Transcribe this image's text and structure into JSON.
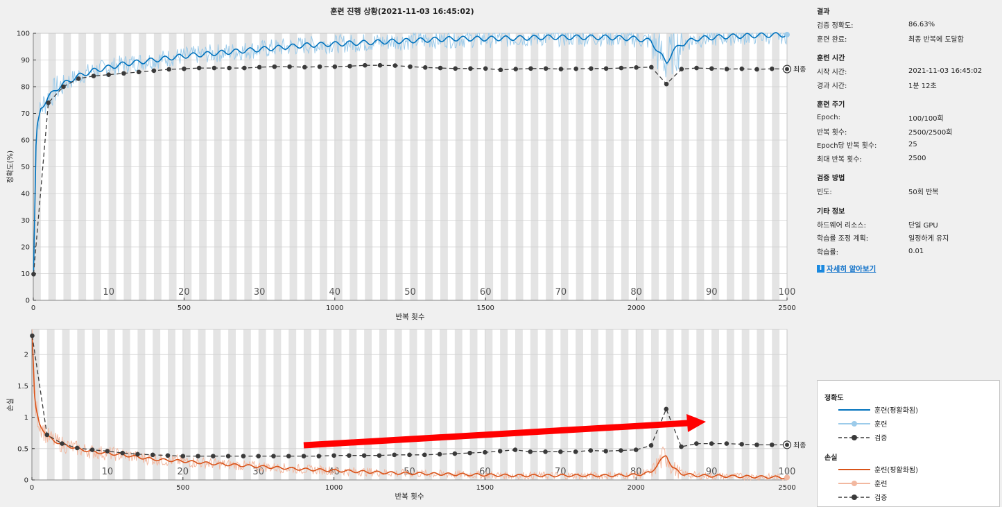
{
  "title": "훈련 진행 상황(2021-11-03 16:45:02)",
  "colors": {
    "train_acc": "#0072bd",
    "train_acc_raw": "#9ccbea",
    "train_loss": "#d95319",
    "train_loss_raw": "#f2b8a0",
    "validation": "#3a3a3a",
    "arrow": "#ff0000"
  },
  "chart_data": [
    {
      "type": "line",
      "ylabel": "정확도(%)",
      "xlabel": "반복 횟수",
      "xlim": [
        0,
        2500
      ],
      "ylim": [
        0,
        100
      ],
      "xticks": [
        0,
        500,
        1000,
        1500,
        2000,
        2500
      ],
      "yticks": [
        0,
        10,
        20,
        30,
        40,
        50,
        60,
        70,
        80,
        90,
        100
      ],
      "epoch_labels": [
        "10",
        "20",
        "30",
        "40",
        "50",
        "60",
        "70",
        "80",
        "90",
        "100"
      ],
      "final_label": "최종",
      "series": [
        {
          "name": "훈련(평활화됨)",
          "x": [
            1,
            10,
            25,
            50,
            75,
            100,
            150,
            200,
            300,
            400,
            500,
            600,
            700,
            800,
            900,
            1000,
            1100,
            1200,
            1300,
            1400,
            1500,
            1600,
            1700,
            1800,
            1900,
            2000,
            2050,
            2080,
            2100,
            2120,
            2150,
            2200,
            2300,
            2400,
            2500
          ],
          "y": [
            10,
            63,
            72,
            76,
            79,
            81,
            84,
            86,
            88.5,
            90,
            91.5,
            92.5,
            93.5,
            94.5,
            95.5,
            96,
            96.5,
            97,
            97.5,
            98,
            98,
            98.2,
            98.5,
            98.5,
            98.5,
            98,
            97,
            92,
            89,
            93,
            96,
            98,
            98.8,
            99.2,
            99.5
          ]
        },
        {
          "name": "검증",
          "x": [
            1,
            50,
            100,
            150,
            200,
            250,
            300,
            350,
            400,
            450,
            500,
            550,
            600,
            650,
            700,
            750,
            800,
            850,
            900,
            950,
            1000,
            1050,
            1100,
            1150,
            1200,
            1250,
            1300,
            1350,
            1400,
            1450,
            1500,
            1550,
            1600,
            1650,
            1700,
            1750,
            1800,
            1850,
            1900,
            1950,
            2000,
            2050,
            2100,
            2150,
            2200,
            2250,
            2300,
            2350,
            2400,
            2450,
            2500
          ],
          "y": [
            9.8,
            74,
            80,
            83,
            84,
            84.5,
            85,
            85.5,
            86,
            86.5,
            86.7,
            87,
            87,
            87,
            87,
            87.3,
            87.5,
            87.5,
            87.3,
            87.5,
            87.5,
            87.7,
            88,
            88,
            87.9,
            87.5,
            87.2,
            87,
            86.8,
            86.8,
            86.8,
            86.3,
            86.6,
            86.8,
            86.8,
            86.6,
            86.7,
            86.8,
            86.8,
            87,
            87.2,
            87.3,
            81,
            86.6,
            87,
            86.8,
            86.6,
            86.7,
            86.5,
            86.7,
            86.6
          ]
        }
      ]
    },
    {
      "type": "line",
      "ylabel": "손실",
      "xlabel": "반복 횟수",
      "xlim": [
        0,
        2500
      ],
      "ylim": [
        0,
        2.4
      ],
      "xticks": [
        0,
        500,
        1000,
        1500,
        2000,
        2500
      ],
      "yticks": [
        0,
        0.5,
        1,
        1.5,
        2
      ],
      "epoch_labels": [
        "10",
        "20",
        "30",
        "40",
        "50",
        "60",
        "70",
        "80",
        "90",
        "100"
      ],
      "final_label": "최종",
      "series": [
        {
          "name": "훈련(평활화됨)",
          "x": [
            1,
            10,
            25,
            50,
            75,
            100,
            150,
            200,
            300,
            400,
            500,
            600,
            700,
            800,
            900,
            1000,
            1100,
            1200,
            1300,
            1400,
            1500,
            1600,
            1700,
            1800,
            1900,
            2000,
            2050,
            2080,
            2100,
            2120,
            2150,
            2200,
            2300,
            2400,
            2500
          ],
          "y": [
            2.3,
            1.2,
            0.9,
            0.7,
            0.62,
            0.57,
            0.5,
            0.45,
            0.4,
            0.33,
            0.3,
            0.26,
            0.23,
            0.2,
            0.17,
            0.15,
            0.13,
            0.11,
            0.1,
            0.09,
            0.08,
            0.07,
            0.07,
            0.07,
            0.07,
            0.08,
            0.12,
            0.3,
            0.4,
            0.2,
            0.1,
            0.07,
            0.06,
            0.05,
            0.04
          ]
        },
        {
          "name": "검증",
          "x": [
            1,
            50,
            100,
            150,
            200,
            250,
            300,
            350,
            400,
            450,
            500,
            550,
            600,
            650,
            700,
            750,
            800,
            850,
            900,
            950,
            1000,
            1050,
            1100,
            1150,
            1200,
            1250,
            1300,
            1350,
            1400,
            1450,
            1500,
            1550,
            1600,
            1650,
            1700,
            1750,
            1800,
            1850,
            1900,
            1950,
            2000,
            2050,
            2100,
            2150,
            2200,
            2250,
            2300,
            2350,
            2400,
            2450,
            2500
          ],
          "y": [
            2.3,
            0.72,
            0.58,
            0.51,
            0.48,
            0.46,
            0.43,
            0.41,
            0.4,
            0.39,
            0.38,
            0.38,
            0.38,
            0.38,
            0.38,
            0.38,
            0.38,
            0.38,
            0.38,
            0.38,
            0.39,
            0.39,
            0.39,
            0.39,
            0.4,
            0.4,
            0.4,
            0.41,
            0.42,
            0.43,
            0.44,
            0.46,
            0.48,
            0.45,
            0.45,
            0.45,
            0.45,
            0.47,
            0.46,
            0.47,
            0.48,
            0.55,
            1.13,
            0.53,
            0.58,
            0.58,
            0.58,
            0.57,
            0.56,
            0.56,
            0.56
          ]
        }
      ]
    }
  ],
  "info": {
    "results": {
      "title": "결과",
      "rows": [
        {
          "k": "검증 정확도:",
          "v": "86.63%"
        },
        {
          "k": "훈련 완료:",
          "v": "최종 반복에 도달함"
        }
      ]
    },
    "time": {
      "title": "훈련 시간",
      "rows": [
        {
          "k": "시작 시간:",
          "v": "2021-11-03 16:45:02"
        },
        {
          "k": "경과 시간:",
          "v": "1분 12초"
        }
      ]
    },
    "cycle": {
      "title": "훈련 주기",
      "rows": [
        {
          "k": "Epoch:",
          "v": "100/100회"
        },
        {
          "k": "반복 횟수:",
          "v": "2500/2500회"
        },
        {
          "k": "Epoch당 반복 횟수:",
          "v": "25"
        },
        {
          "k": "최대 반복 횟수:",
          "v": "2500"
        }
      ]
    },
    "validation": {
      "title": "검증 방법",
      "rows": [
        {
          "k": "빈도:",
          "v": "50회 반복"
        }
      ]
    },
    "other": {
      "title": "기타 정보",
      "rows": [
        {
          "k": "하드웨어 리소스:",
          "v": "단일 GPU"
        },
        {
          "k": "학습률 조정 계획:",
          "v": "일정하게 유지"
        },
        {
          "k": "학습률:",
          "v": "0.01"
        }
      ]
    },
    "learn_more": "자세히 알아보기"
  },
  "legend": {
    "acc_title": "정확도",
    "loss_title": "손실",
    "smoothed": "훈련(평활화됨)",
    "train": "훈련",
    "validation": "검증"
  }
}
